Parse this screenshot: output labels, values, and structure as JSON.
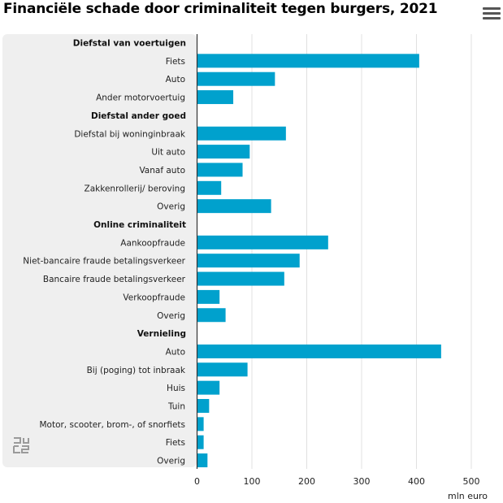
{
  "title": "Financiële schade door criminaliteit tegen burgers, 2021",
  "menu_icon": "hamburger-menu-icon",
  "logo_icon": "cbs-logo-icon",
  "chart_data": {
    "type": "bar",
    "orientation": "horizontal",
    "title": "Financiële schade door criminaliteit tegen burgers, 2021",
    "xlabel": "mln euro",
    "xlim": [
      0,
      500
    ],
    "xticks": [
      "0",
      "100",
      "200",
      "300",
      "400",
      "500"
    ],
    "grid": true,
    "bar_color": "#00a1cd",
    "groups": [
      {
        "name": "Diefstal van voertuigen",
        "categories": [
          "Fiets",
          "Auto",
          "Ander motorvoertuig"
        ],
        "values": [
          405,
          142,
          66
        ]
      },
      {
        "name": "Diefstal ander goed",
        "categories": [
          "Diefstal bij woninginbraak",
          "Uit auto",
          "Vanaf auto",
          "Zakkenrollerij/ beroving",
          "Overig"
        ],
        "values": [
          162,
          96,
          83,
          44,
          135
        ]
      },
      {
        "name": "Online criminaliteit",
        "categories": [
          "Aankoopfraude",
          "Niet-bancaire fraude betalingsverkeer",
          "Bancaire fraude betalingsverkeer",
          "Verkoopfraude",
          "Overig"
        ],
        "values": [
          239,
          187,
          159,
          41,
          52
        ]
      },
      {
        "name": "Vernieling",
        "categories": [
          "Auto",
          "Bij (poging) tot inbraak",
          "Huis",
          "Tuin",
          "Motor, scooter, brom-, of snorfiets",
          "Fiets",
          "Overig"
        ],
        "values": [
          445,
          92,
          41,
          22,
          12,
          12,
          19
        ]
      }
    ]
  }
}
